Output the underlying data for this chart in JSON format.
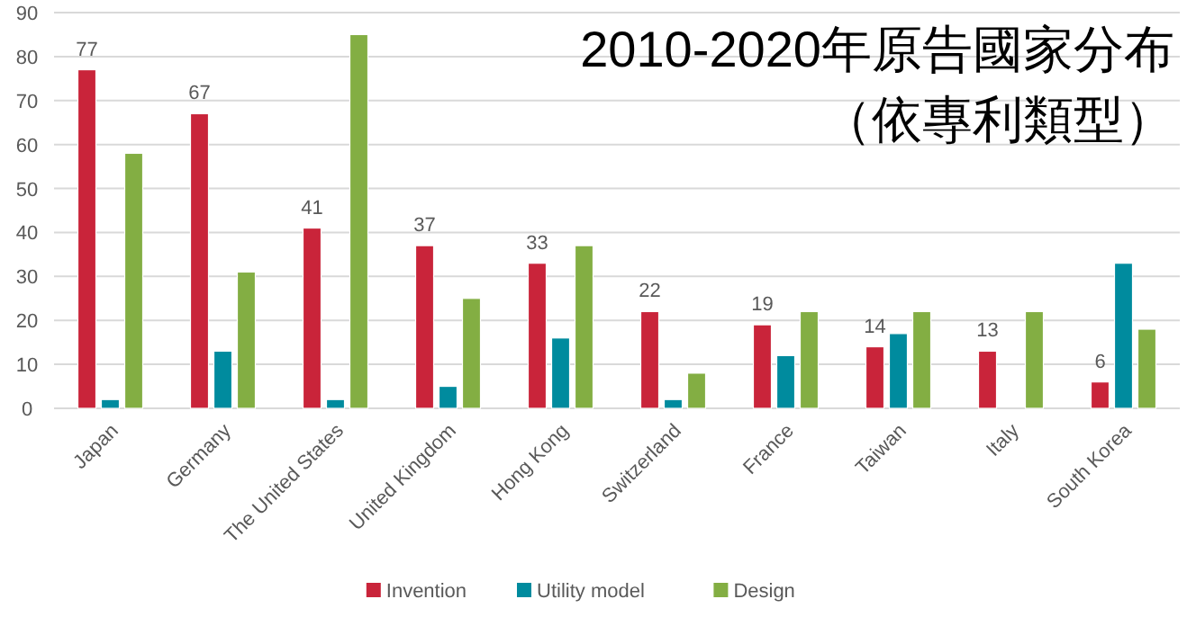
{
  "chart_data": {
    "type": "bar",
    "title": "2010-2020年原告國家分布",
    "subtitle": "（依專利類型）",
    "categories": [
      "Japan",
      "Germany",
      "The United States",
      "United Kingdom",
      "Hong Kong",
      "Switzerland",
      "France",
      "Taiwan",
      "Italy",
      "South Korea"
    ],
    "series": [
      {
        "name": "Invention",
        "color": "#c9243a",
        "values": [
          77,
          67,
          41,
          37,
          33,
          22,
          19,
          14,
          13,
          6
        ],
        "value_labels": [
          "77",
          "67",
          "41",
          "37",
          "33",
          "22",
          "19",
          "14",
          "13",
          "6"
        ]
      },
      {
        "name": "Utility model",
        "color": "#008b9e",
        "values": [
          2,
          13,
          2,
          5,
          16,
          2,
          12,
          17,
          null,
          33
        ]
      },
      {
        "name": "Design",
        "color": "#83ae43",
        "values": [
          58,
          31,
          85,
          25,
          37,
          8,
          22,
          22,
          22,
          18
        ]
      }
    ],
    "ylim": [
      0,
      90
    ],
    "yticks": [
      0,
      10,
      20,
      30,
      40,
      50,
      60,
      70,
      80,
      90
    ],
    "grid": "y",
    "legend": "bottom"
  }
}
